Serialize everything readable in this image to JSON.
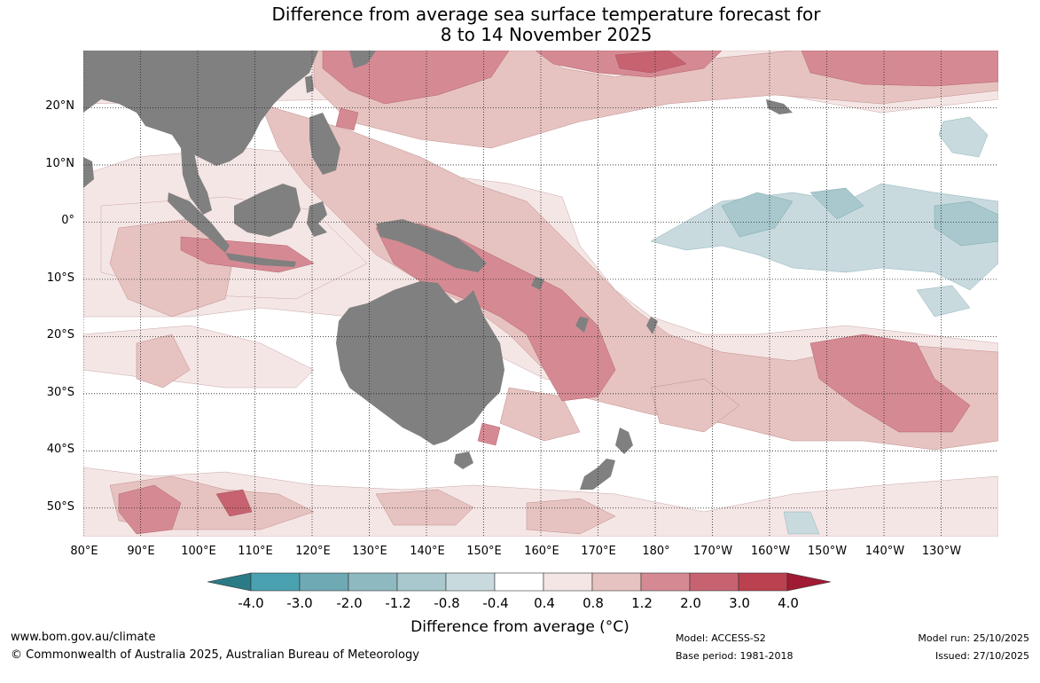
{
  "title": {
    "line1": "Difference from average sea surface temperature forecast for",
    "line2": "8 to 14 November 2025"
  },
  "map": {
    "region": "Indian Ocean, Maritime Continent and Western/Central Pacific",
    "lon_range": [
      80,
      240
    ],
    "lat_range": [
      -55,
      30
    ],
    "lat_ticks": [
      {
        "value": 20,
        "label": "20°N"
      },
      {
        "value": 10,
        "label": "10°N"
      },
      {
        "value": 0,
        "label": "0°"
      },
      {
        "value": -10,
        "label": "10°S"
      },
      {
        "value": -20,
        "label": "20°S"
      },
      {
        "value": -30,
        "label": "30°S"
      },
      {
        "value": -40,
        "label": "40°S"
      },
      {
        "value": -50,
        "label": "50°S"
      }
    ],
    "lon_ticks": [
      {
        "value": 80,
        "label": "80°E"
      },
      {
        "value": 90,
        "label": "90°E"
      },
      {
        "value": 100,
        "label": "100°E"
      },
      {
        "value": 110,
        "label": "110°E"
      },
      {
        "value": 120,
        "label": "120°E"
      },
      {
        "value": 130,
        "label": "130°E"
      },
      {
        "value": 140,
        "label": "140°E"
      },
      {
        "value": 150,
        "label": "150°E"
      },
      {
        "value": 160,
        "label": "160°E"
      },
      {
        "value": 170,
        "label": "170°E"
      },
      {
        "value": 180,
        "label": "180°"
      },
      {
        "value": 190,
        "label": "170°W"
      },
      {
        "value": 200,
        "label": "160°W"
      },
      {
        "value": 210,
        "label": "150°W"
      },
      {
        "value": 220,
        "label": "140°W"
      },
      {
        "value": 230,
        "label": "130°W"
      }
    ],
    "land_color": "#808080",
    "grid_style": "dotted"
  },
  "colorbar": {
    "tick_labels": [
      "-4.0",
      "-3.0",
      "-2.0",
      "-1.2",
      "-0.8",
      "-0.4",
      "0.4",
      "0.8",
      "1.2",
      "2.0",
      "3.0",
      "4.0"
    ],
    "colors": [
      "#2b7b86",
      "#4aa1b0",
      "#6ea9b4",
      "#8fb9c1",
      "#a8c8cd",
      "#c8dade",
      "#ffffff",
      "#f4e6e5",
      "#e6c3c1",
      "#d58a93",
      "#c76370",
      "#bb414f",
      "#a01a33"
    ],
    "label": "Difference from average (°C)"
  },
  "footer": {
    "url": "www.bom.gov.au/climate",
    "copyright": "© Commonwealth of Australia 2025, Australian Bureau of Meteorology",
    "model": "Model: ACCESS-S2",
    "base_period": "Base period: 1981-2018",
    "model_run": "Model run: 25/10/2025",
    "issued": "Issued: 27/10/2025"
  }
}
